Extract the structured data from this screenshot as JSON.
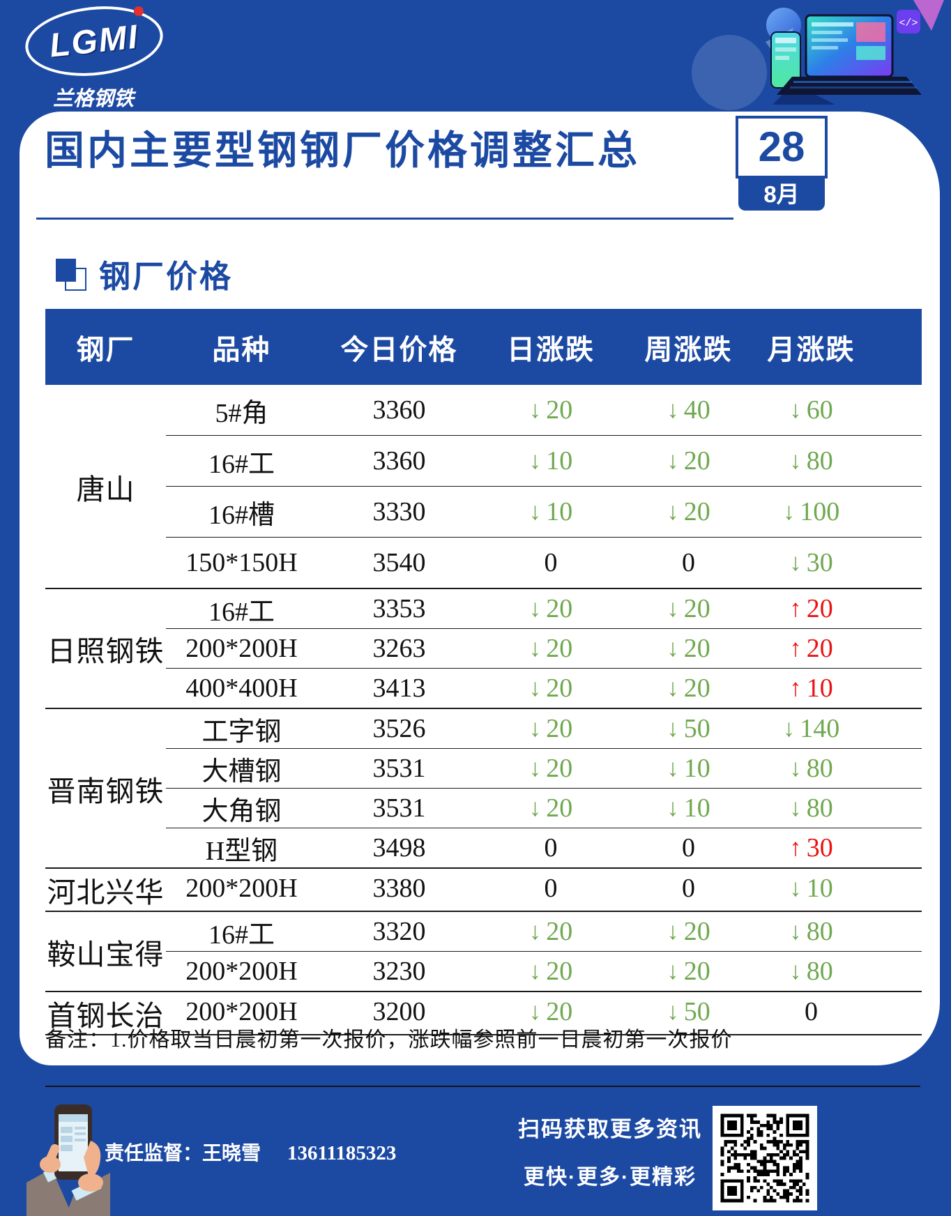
{
  "brand": {
    "logo_text": "LGMI",
    "logo_subtext": "兰格钢铁"
  },
  "header": {
    "title": "国内主要型钢钢厂价格调整汇总",
    "date_day": "28",
    "date_month": "8月"
  },
  "section": {
    "title": "钢厂价格"
  },
  "table": {
    "headers": [
      "钢厂",
      "品种",
      "今日价格",
      "日涨跌",
      "周涨跌",
      "月涨跌"
    ],
    "groups": [
      {
        "mill": "唐山",
        "rows": [
          {
            "variety": "5#角",
            "price": "3360",
            "day": {
              "dir": "down",
              "value": "20"
            },
            "week": {
              "dir": "down",
              "value": "40"
            },
            "month": {
              "dir": "down",
              "value": "60"
            }
          },
          {
            "variety": "16#工",
            "price": "3360",
            "day": {
              "dir": "down",
              "value": "10"
            },
            "week": {
              "dir": "down",
              "value": "20"
            },
            "month": {
              "dir": "down",
              "value": "80"
            }
          },
          {
            "variety": "16#槽",
            "price": "3330",
            "day": {
              "dir": "down",
              "value": "10"
            },
            "week": {
              "dir": "down",
              "value": "20"
            },
            "month": {
              "dir": "down",
              "value": "100"
            }
          },
          {
            "variety": "150*150H",
            "price": "3540",
            "day": {
              "dir": "flat",
              "value": "0"
            },
            "week": {
              "dir": "flat",
              "value": "0"
            },
            "month": {
              "dir": "down",
              "value": "30"
            }
          }
        ]
      },
      {
        "mill": "日照钢铁",
        "rows": [
          {
            "variety": "16#工",
            "price": "3353",
            "day": {
              "dir": "down",
              "value": "20"
            },
            "week": {
              "dir": "down",
              "value": "20"
            },
            "month": {
              "dir": "up",
              "value": "20"
            }
          },
          {
            "variety": "200*200H",
            "price": "3263",
            "day": {
              "dir": "down",
              "value": "20"
            },
            "week": {
              "dir": "down",
              "value": "20"
            },
            "month": {
              "dir": "up",
              "value": "20"
            }
          },
          {
            "variety": "400*400H",
            "price": "3413",
            "day": {
              "dir": "down",
              "value": "20"
            },
            "week": {
              "dir": "down",
              "value": "20"
            },
            "month": {
              "dir": "up",
              "value": "10"
            }
          }
        ]
      },
      {
        "mill": "晋南钢铁",
        "rows": [
          {
            "variety": "工字钢",
            "price": "3526",
            "day": {
              "dir": "down",
              "value": "20"
            },
            "week": {
              "dir": "down",
              "value": "50"
            },
            "month": {
              "dir": "down",
              "value": "140"
            }
          },
          {
            "variety": "大槽钢",
            "price": "3531",
            "day": {
              "dir": "down",
              "value": "20"
            },
            "week": {
              "dir": "down",
              "value": "10"
            },
            "month": {
              "dir": "down",
              "value": "80"
            }
          },
          {
            "variety": "大角钢",
            "price": "3531",
            "day": {
              "dir": "down",
              "value": "20"
            },
            "week": {
              "dir": "down",
              "value": "10"
            },
            "month": {
              "dir": "down",
              "value": "80"
            }
          },
          {
            "variety": "H型钢",
            "price": "3498",
            "day": {
              "dir": "flat",
              "value": "0"
            },
            "week": {
              "dir": "flat",
              "value": "0"
            },
            "month": {
              "dir": "up",
              "value": "30"
            }
          }
        ]
      },
      {
        "mill": "河北兴华",
        "rows": [
          {
            "variety": "200*200H",
            "price": "3380",
            "day": {
              "dir": "flat",
              "value": "0"
            },
            "week": {
              "dir": "flat",
              "value": "0"
            },
            "month": {
              "dir": "down",
              "value": "10"
            }
          }
        ]
      },
      {
        "mill": "鞍山宝得",
        "rows": [
          {
            "variety": "16#工",
            "price": "3320",
            "day": {
              "dir": "down",
              "value": "20"
            },
            "week": {
              "dir": "down",
              "value": "20"
            },
            "month": {
              "dir": "down",
              "value": "80"
            }
          },
          {
            "variety": "200*200H",
            "price": "3230",
            "day": {
              "dir": "down",
              "value": "20"
            },
            "week": {
              "dir": "down",
              "value": "20"
            },
            "month": {
              "dir": "down",
              "value": "80"
            }
          }
        ]
      },
      {
        "mill": "首钢长治",
        "rows": [
          {
            "variety": "200*200H",
            "price": "3200",
            "day": {
              "dir": "down",
              "value": "20"
            },
            "week": {
              "dir": "down",
              "value": "50"
            },
            "month": {
              "dir": "flat",
              "value": "0"
            }
          }
        ]
      }
    ]
  },
  "note": "备注：1.价格取当日晨初第一次报价，涨跌幅参照前一日晨初第一次报价",
  "footer": {
    "supervisor_label": "责任监督：王晓雪",
    "phone": "13611185323",
    "qr_caption_line1": "扫码获取更多资讯",
    "qr_caption_line2": "更快·更多·更精彩"
  },
  "icons": {
    "down_arrow": "↓",
    "up_arrow": "↑",
    "code_badge": "</>"
  },
  "colors": {
    "primary_blue": "#1c4aa3",
    "down_green": "#6fa84f",
    "up_red": "#ea1212"
  }
}
